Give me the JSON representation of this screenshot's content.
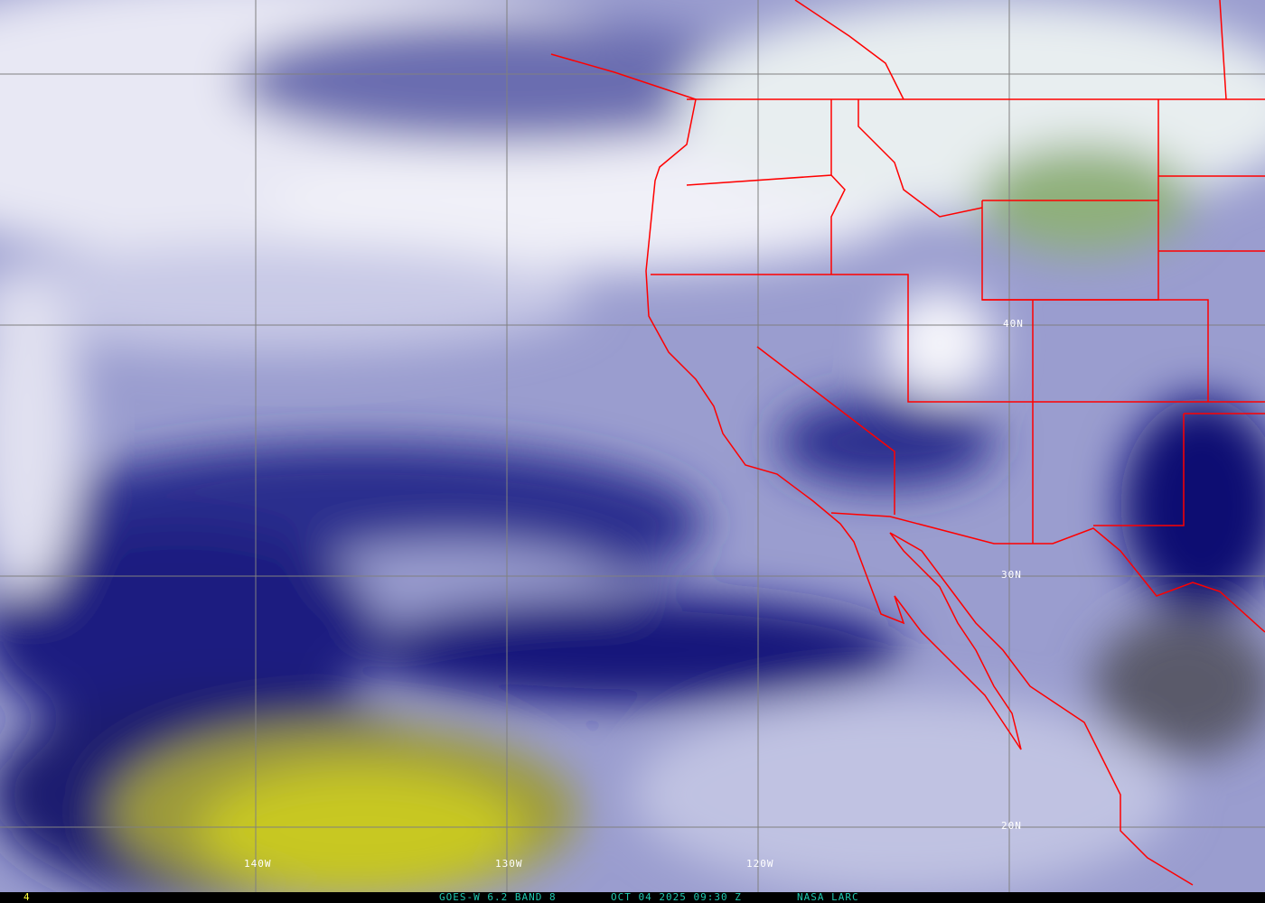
{
  "map": {
    "grid_labels": {
      "lon": [
        "140W",
        "130W",
        "120W"
      ],
      "lat": [
        "40N",
        "30N",
        "20N"
      ]
    },
    "colors": {
      "coastline": "#ff0000",
      "grid": "#808080",
      "dry_layer": "#c8c820",
      "moist_layer": "#f0f0f8",
      "mid_layer": "#9a9dcf",
      "deep_dry": "#0a0a78",
      "cloud_top": "#6a9a50"
    }
  },
  "footer": {
    "frame": "4",
    "satellite": "GOES-W 6.2 BAND 8",
    "datetime": "OCT 04 2025 09:30 Z",
    "source": "NASA LARC"
  }
}
